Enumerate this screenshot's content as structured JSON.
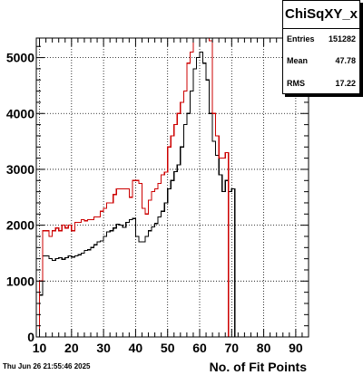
{
  "chart_data": {
    "type": "histogram",
    "title": "ChiSqXY_x",
    "xlabel": "No. of Fit Points",
    "ylabel": "",
    "xlim": [
      9,
      94
    ],
    "ylim": [
      0,
      5350
    ],
    "x_ticks": [
      10,
      20,
      30,
      40,
      50,
      60,
      70,
      80,
      90
    ],
    "y_ticks": [
      0,
      1000,
      2000,
      3000,
      4000,
      5000
    ],
    "grid": true,
    "stats": [
      {
        "label": "Entries",
        "value": "151282"
      },
      {
        "label": "Mean",
        "value": "47.78"
      },
      {
        "label": "RMS",
        "value": "17.22"
      }
    ],
    "series": [
      {
        "color": "#000000",
        "bin_start": 9,
        "bin_width": 1,
        "values": [
          0,
          750,
          1450,
          1450,
          1400,
          1370,
          1400,
          1420,
          1390,
          1420,
          1450,
          1430,
          1450,
          1470,
          1500,
          1550,
          1560,
          1600,
          1650,
          1700,
          1720,
          1800,
          1880,
          1900,
          1950,
          2020,
          2000,
          1960,
          2050,
          2100,
          2120,
          1800,
          1700,
          1700,
          1800,
          1900,
          1970,
          2030,
          2150,
          2250,
          2400,
          2650,
          2800,
          2960,
          3080,
          3400,
          3800,
          4000,
          4400,
          4800,
          5000,
          5100,
          4900,
          4600,
          4000,
          3500,
          3250,
          2900,
          2600,
          2800,
          2600,
          2650,
          0,
          0,
          0,
          0,
          0,
          0,
          0,
          0,
          0,
          0,
          0,
          0,
          0,
          0,
          0,
          0,
          0,
          0,
          0,
          0,
          0,
          0,
          0
        ]
      },
      {
        "color": "#cc0000",
        "bin_start": 9,
        "bin_width": 1,
        "values": [
          0,
          1000,
          1900,
          1900,
          1800,
          1900,
          1950,
          1900,
          2000,
          1950,
          2000,
          1900,
          2050,
          2050,
          2100,
          2080,
          2100,
          2100,
          2150,
          2150,
          2250,
          2300,
          2400,
          2400,
          2550,
          2650,
          2650,
          2650,
          2650,
          2500,
          2800,
          2800,
          2750,
          2300,
          2200,
          2450,
          2600,
          2650,
          2750,
          2900,
          2950,
          3400,
          3600,
          3800,
          4000,
          4200,
          4400,
          4900,
          5100,
          5400,
          5400,
          5400,
          5400,
          5400,
          5300,
          4000,
          3600,
          3200,
          3200,
          3300,
          0,
          0,
          0,
          0,
          0,
          0,
          0,
          0,
          0,
          0,
          0,
          0,
          0,
          0,
          0,
          0,
          0,
          0,
          0,
          0,
          0,
          0,
          0,
          0,
          0
        ]
      }
    ]
  },
  "footer": {
    "timestamp": "Thu Jun 26 21:55:46 2025"
  }
}
